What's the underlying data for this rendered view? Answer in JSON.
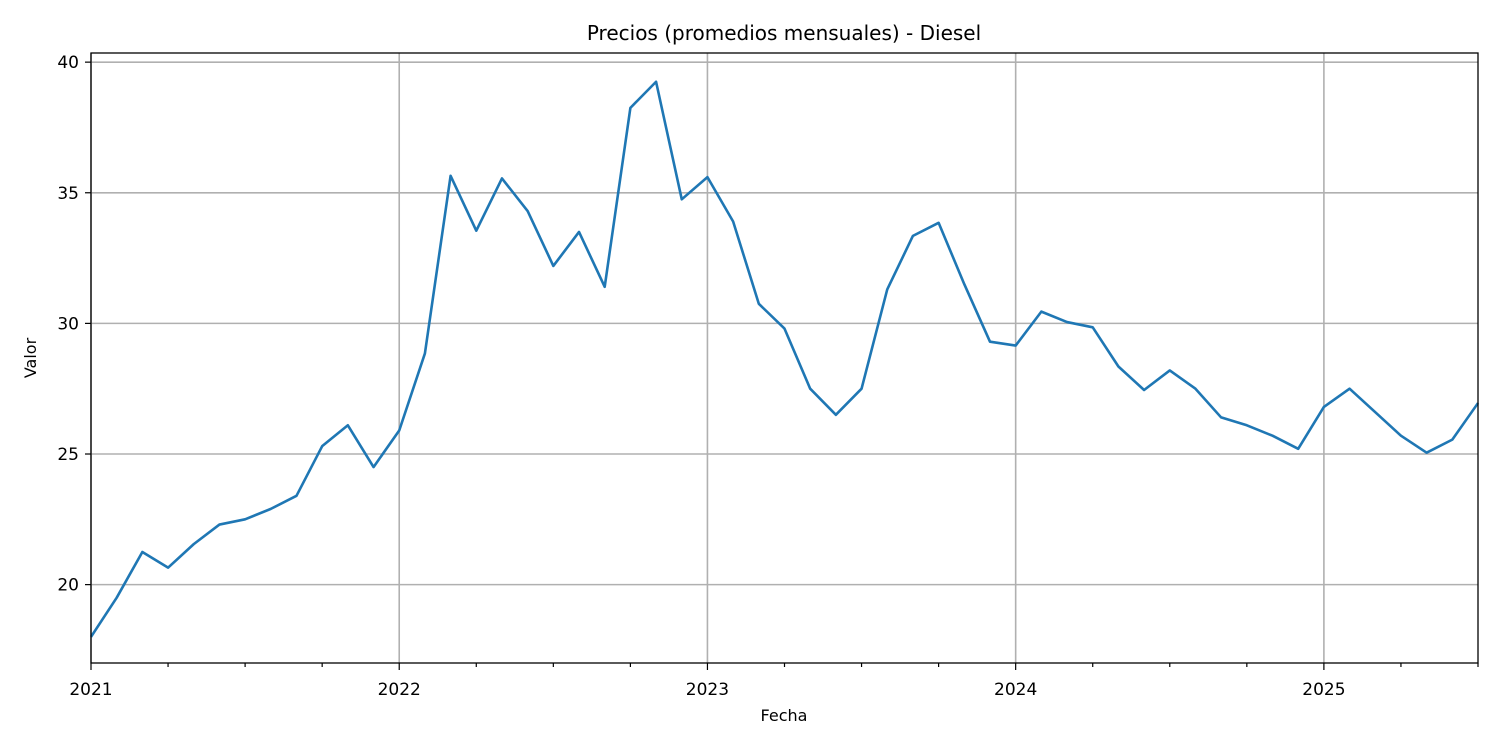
{
  "chart_data": {
    "type": "line",
    "title": "Precios (promedios mensuales) - Diesel",
    "xlabel": "Fecha",
    "ylabel": "Valor",
    "xlim": [
      "2021-01",
      "2025-07"
    ],
    "ylim": [
      17.0,
      40.35
    ],
    "grid": true,
    "x_ticks": [
      "2021",
      "2022",
      "2023",
      "2024",
      "2025"
    ],
    "y_ticks": [
      20,
      25,
      30,
      35,
      40
    ],
    "color": "#1f77b4",
    "series": [
      {
        "x": [
          "2021-01",
          "2021-02",
          "2021-03",
          "2021-04",
          "2021-05",
          "2021-06",
          "2021-07",
          "2021-08",
          "2021-09",
          "2021-10",
          "2021-11",
          "2021-12",
          "2022-01",
          "2022-02",
          "2022-03",
          "2022-04",
          "2022-05",
          "2022-06",
          "2022-07",
          "2022-08",
          "2022-09",
          "2022-10",
          "2022-11",
          "2022-12",
          "2023-01",
          "2023-02",
          "2023-03",
          "2023-04",
          "2023-05",
          "2023-06",
          "2023-07",
          "2023-08",
          "2023-09",
          "2023-10",
          "2023-11",
          "2023-12",
          "2024-01",
          "2024-02",
          "2024-03",
          "2024-04",
          "2024-05",
          "2024-06",
          "2024-07",
          "2024-08",
          "2024-09",
          "2024-10",
          "2024-11",
          "2024-12",
          "2025-01",
          "2025-02",
          "2025-03",
          "2025-04",
          "2025-05",
          "2025-06",
          "2025-07"
        ],
        "values": [
          18.0,
          19.5,
          21.25,
          20.65,
          21.55,
          22.3,
          22.5,
          22.9,
          23.4,
          25.3,
          26.1,
          24.5,
          25.9,
          28.85,
          35.65,
          33.55,
          35.55,
          34.3,
          32.2,
          33.5,
          31.4,
          38.25,
          39.25,
          34.75,
          35.6,
          33.9,
          30.75,
          29.8,
          27.5,
          26.5,
          27.5,
          31.3,
          33.35,
          33.85,
          31.5,
          29.3,
          29.15,
          30.45,
          30.05,
          29.85,
          28.35,
          27.45,
          28.2,
          27.5,
          26.4,
          26.1,
          25.7,
          25.2,
          26.8,
          27.5,
          26.6,
          25.7,
          25.05,
          25.55,
          26.95
        ]
      }
    ]
  }
}
